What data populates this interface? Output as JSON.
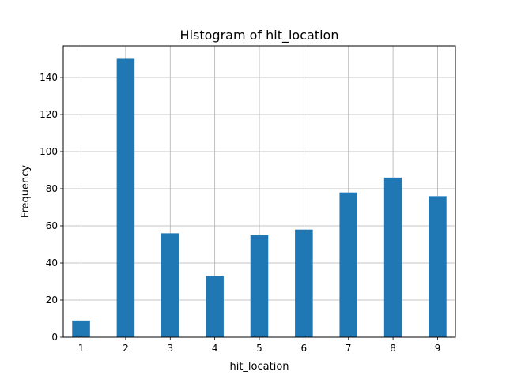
{
  "chart_data": {
    "type": "bar",
    "title": "Histogram of hit_location",
    "xlabel": "hit_location",
    "ylabel": "Frequency",
    "x": [
      1,
      2,
      3,
      4,
      5,
      6,
      7,
      8,
      9
    ],
    "values": [
      9,
      150,
      56,
      33,
      55,
      58,
      78,
      86,
      76
    ],
    "xlim": [
      0.6,
      9.4
    ],
    "ylim": [
      0,
      157
    ],
    "x_ticks": [
      1,
      2,
      3,
      4,
      5,
      6,
      7,
      8,
      9
    ],
    "y_ticks": [
      0,
      20,
      40,
      60,
      80,
      100,
      120,
      140
    ],
    "grid": true,
    "bar_color": "#1f77b4",
    "grid_color": "#b0b0b0"
  }
}
